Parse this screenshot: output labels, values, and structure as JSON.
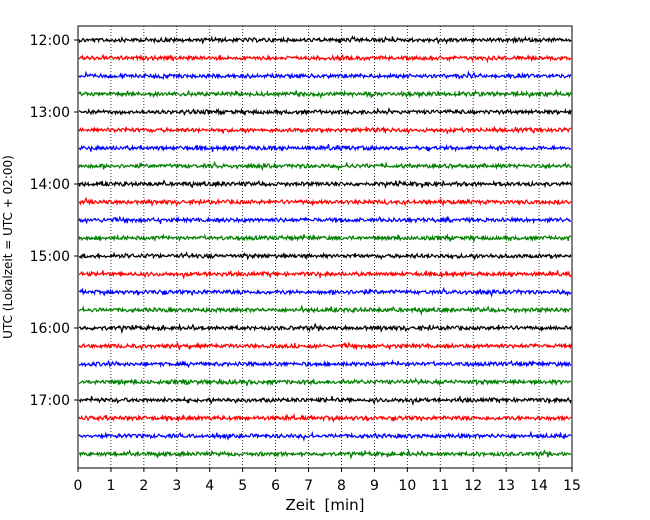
{
  "chart_data": {
    "type": "line",
    "title": "",
    "xlabel": "Zeit  [min]",
    "ylabel": "UTC (Lokalzeit = UTC + 02:00)",
    "xlim": [
      0,
      15
    ],
    "x_ticks": [
      0,
      1,
      2,
      3,
      4,
      5,
      6,
      7,
      8,
      9,
      10,
      11,
      12,
      13,
      14,
      15
    ],
    "x_tick_labels": [
      "0",
      "1",
      "2",
      "3",
      "4",
      "5",
      "6",
      "7",
      "8",
      "9",
      "10",
      "11",
      "12",
      "13",
      "14",
      "15"
    ],
    "y_tick_labels": [
      "12:00",
      "13:00",
      "14:00",
      "15:00",
      "16:00",
      "17:00"
    ],
    "vertical_grid": "dotted",
    "trace_colors": [
      "#000000",
      "#ff0000",
      "#0000ff",
      "#008000"
    ],
    "traces": [
      {
        "start": "12:00",
        "color": "#000000"
      },
      {
        "start": "12:15",
        "color": "#ff0000"
      },
      {
        "start": "12:30",
        "color": "#0000ff"
      },
      {
        "start": "12:45",
        "color": "#008000"
      },
      {
        "start": "13:00",
        "color": "#000000"
      },
      {
        "start": "13:15",
        "color": "#ff0000"
      },
      {
        "start": "13:30",
        "color": "#0000ff"
      },
      {
        "start": "13:45",
        "color": "#008000"
      },
      {
        "start": "14:00",
        "color": "#000000"
      },
      {
        "start": "14:15",
        "color": "#ff0000"
      },
      {
        "start": "14:30",
        "color": "#0000ff"
      },
      {
        "start": "14:45",
        "color": "#008000"
      },
      {
        "start": "15:00",
        "color": "#000000"
      },
      {
        "start": "15:15",
        "color": "#ff0000"
      },
      {
        "start": "15:30",
        "color": "#0000ff"
      },
      {
        "start": "15:45",
        "color": "#008000"
      },
      {
        "start": "16:00",
        "color": "#000000"
      },
      {
        "start": "16:15",
        "color": "#ff0000"
      },
      {
        "start": "16:30",
        "color": "#0000ff"
      },
      {
        "start": "16:45",
        "color": "#008000"
      },
      {
        "start": "17:00",
        "color": "#000000"
      },
      {
        "start": "17:15",
        "color": "#ff0000"
      },
      {
        "start": "17:30",
        "color": "#0000ff"
      },
      {
        "start": "17:45",
        "color": "#008000"
      }
    ]
  }
}
